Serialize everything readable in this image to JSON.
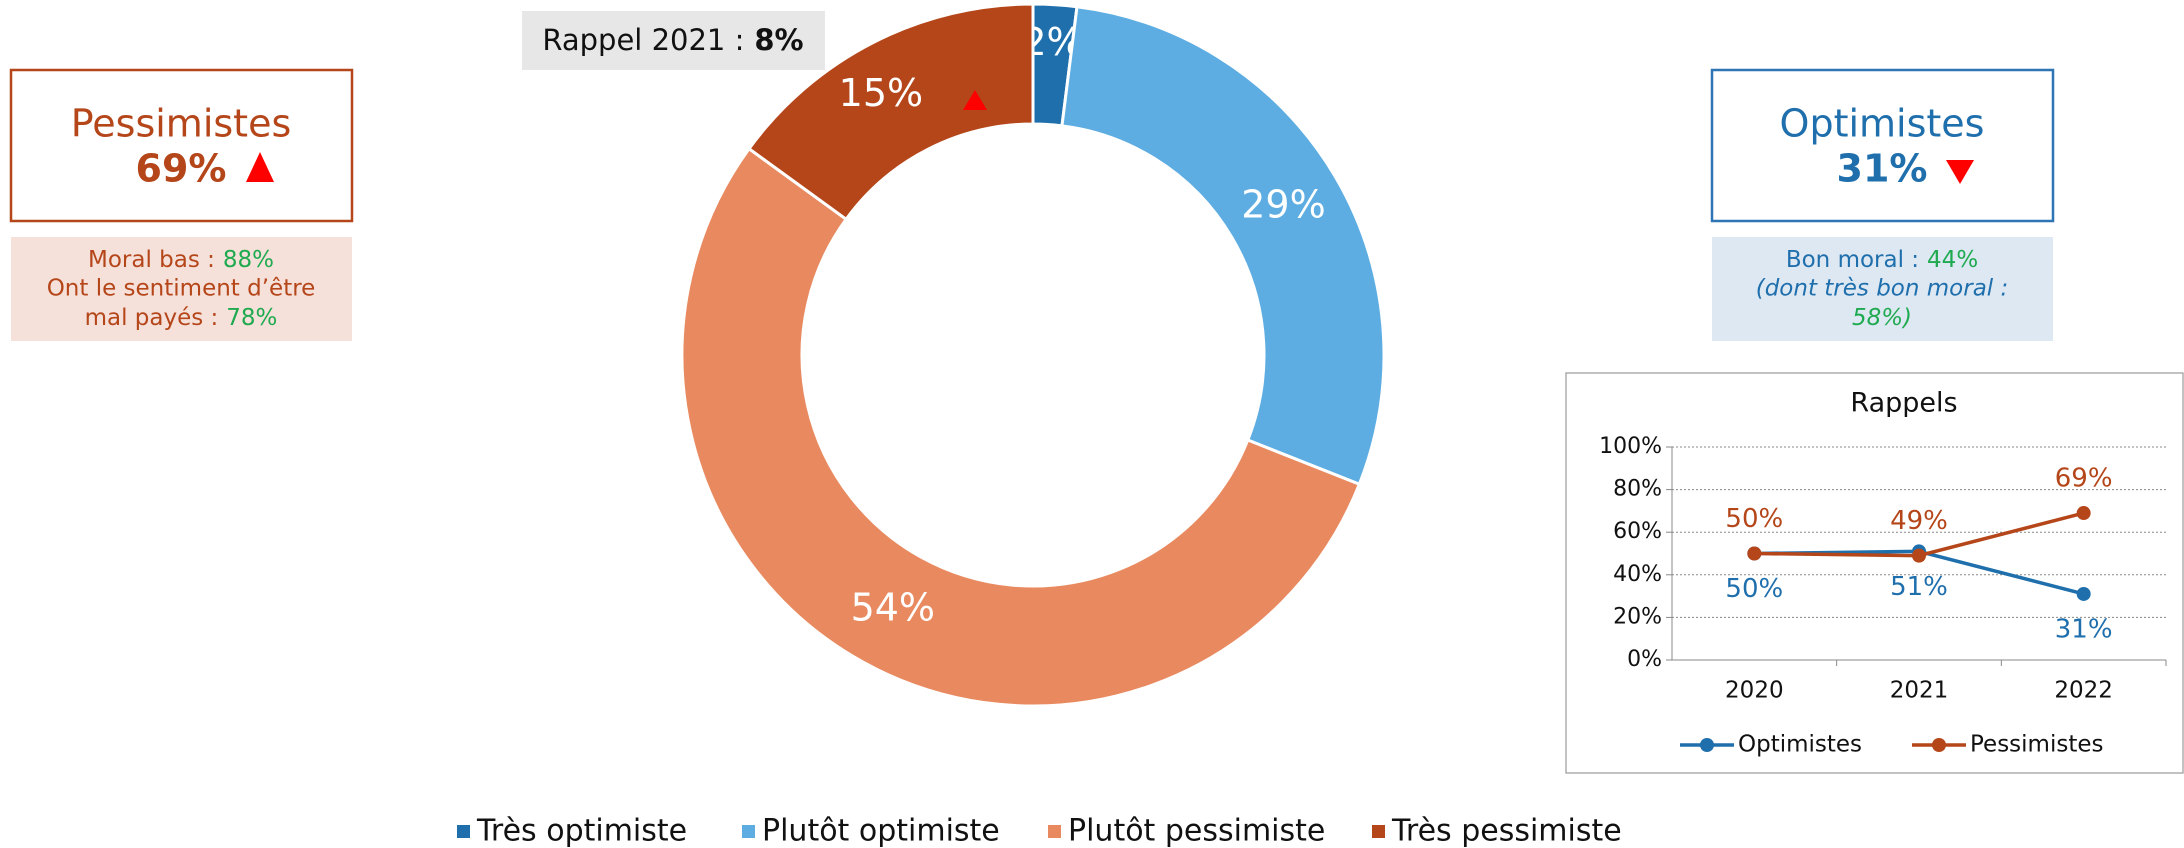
{
  "chart_data": [
    {
      "type": "donut",
      "categories": [
        "Très optimiste",
        "Plutôt optimiste",
        "Plutôt pessimiste",
        "Très pessimiste"
      ],
      "values": [
        2,
        29,
        54,
        15
      ],
      "value_labels": [
        "2%",
        "29%",
        "54%",
        "15%"
      ],
      "colors": [
        "#1f6fad",
        "#5dade2",
        "#e8895f",
        "#b5461a"
      ],
      "annotation": {
        "label": "Rappel 2021 :",
        "value": "8%"
      }
    },
    {
      "type": "line",
      "title": "Rappels",
      "categories": [
        "2020",
        "2021",
        "2022"
      ],
      "series": [
        {
          "name": "Optimistes",
          "color": "#1f6fad",
          "values": [
            50,
            51,
            31
          ],
          "value_labels": [
            "50%",
            "51%",
            "31%"
          ]
        },
        {
          "name": "Pessimistes",
          "color": "#b5461a",
          "values": [
            50,
            49,
            69
          ],
          "value_labels": [
            "50%",
            "49%",
            "69%"
          ]
        }
      ],
      "ylim": [
        0,
        100
      ],
      "yticks": [
        {
          "value": 0,
          "label": "0%"
        },
        {
          "value": 20,
          "label": "20%"
        },
        {
          "value": 40,
          "label": "40%"
        },
        {
          "value": 60,
          "label": "60%"
        },
        {
          "value": 80,
          "label": "80%"
        },
        {
          "value": 100,
          "label": "100%"
        }
      ],
      "grid": true,
      "legend": "bottom"
    }
  ],
  "pessimistes": {
    "title": "Pessimistes",
    "value": "69%",
    "lines": [
      {
        "label": "Moral bas :",
        "value": "88%"
      },
      {
        "label": "Ont le sentiment d’être"
      },
      {
        "label": "mal payés :",
        "value": "78%"
      }
    ]
  },
  "optimistes": {
    "title": "Optimistes",
    "value": "31%",
    "lines": [
      {
        "label": "Bon moral :",
        "value": "44%"
      },
      {
        "label": "(dont très bon moral :"
      },
      {
        "label": "",
        "value": "58%)"
      }
    ]
  }
}
